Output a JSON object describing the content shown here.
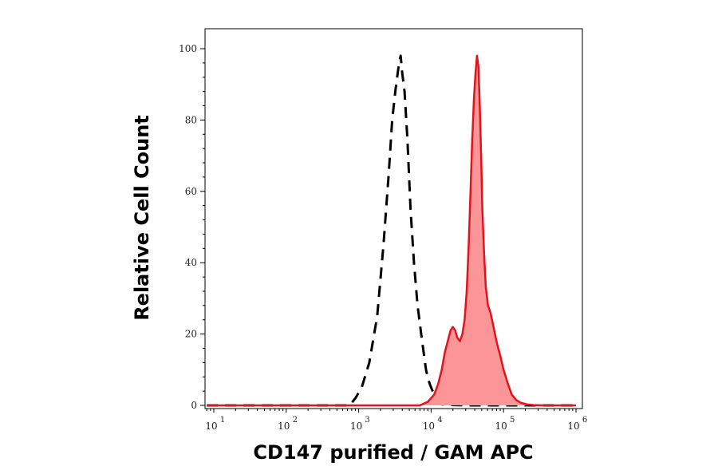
{
  "chart_data": {
    "type": "area",
    "title": "",
    "xlabel": "CD147 purified / GAM APC",
    "ylabel": "Relative Cell Count",
    "x_scale": "log",
    "xlim": [
      10,
      1000000
    ],
    "ylim": [
      0,
      100
    ],
    "x_ticks": [
      {
        "value": 10,
        "base": "10",
        "exp": "1"
      },
      {
        "value": 100,
        "base": "10",
        "exp": "2"
      },
      {
        "value": 1000,
        "base": "10",
        "exp": "3"
      },
      {
        "value": 10000,
        "base": "10",
        "exp": "4"
      },
      {
        "value": 100000,
        "base": "10",
        "exp": "5"
      },
      {
        "value": 1000000,
        "base": "10",
        "exp": "6"
      }
    ],
    "y_ticks": [
      {
        "value": 0,
        "label": "0"
      },
      {
        "value": 20,
        "label": "20"
      },
      {
        "value": 40,
        "label": "40"
      },
      {
        "value": 60,
        "label": "60"
      },
      {
        "value": 80,
        "label": "80"
      },
      {
        "value": 100,
        "label": "100"
      }
    ],
    "grid": false,
    "series": [
      {
        "style": "dashed-outline",
        "color": "#000000",
        "x": [
          8,
          750,
          900,
          1100,
          1400,
          1800,
          2200,
          2600,
          2900,
          3200,
          3500,
          3700,
          3800,
          4000,
          4300,
          4700,
          5200,
          5800,
          6500,
          7500,
          8500,
          9200,
          10000,
          11000,
          12000,
          13000,
          14000,
          16000,
          20000,
          30000,
          1000000
        ],
        "y": [
          0,
          0,
          2,
          5,
          12,
          25,
          45,
          65,
          80,
          88,
          94,
          97,
          98,
          93,
          88,
          75,
          55,
          40,
          28,
          18,
          10,
          7,
          5,
          3,
          1.5,
          0.8,
          0.3,
          0.2,
          0.1,
          0,
          0
        ]
      },
      {
        "style": "filled",
        "color": "#e3131b",
        "fill": "#fb9597",
        "x": [
          8,
          7000,
          9000,
          11000,
          12500,
          14000,
          15500,
          17000,
          18500,
          20000,
          21500,
          23000,
          25000,
          27000,
          29000,
          31000,
          33000,
          35000,
          37000,
          39000,
          41000,
          43000,
          45000,
          47000,
          49000,
          51000,
          54000,
          57000,
          61000,
          66000,
          71000,
          76000,
          82000,
          90000,
          100000,
          115000,
          130000,
          150000,
          175000,
          210000,
          260000,
          350000,
          1000000
        ],
        "y": [
          0,
          0,
          1,
          3,
          6,
          10,
          15,
          18,
          21,
          22,
          21,
          19,
          18,
          20,
          24,
          32,
          45,
          60,
          75,
          86,
          93,
          98,
          95,
          84,
          70,
          55,
          42,
          33,
          28,
          26,
          23,
          20,
          17,
          14,
          10,
          6,
          3,
          1.5,
          0.7,
          0.3,
          0.1,
          0,
          0
        ]
      }
    ]
  }
}
